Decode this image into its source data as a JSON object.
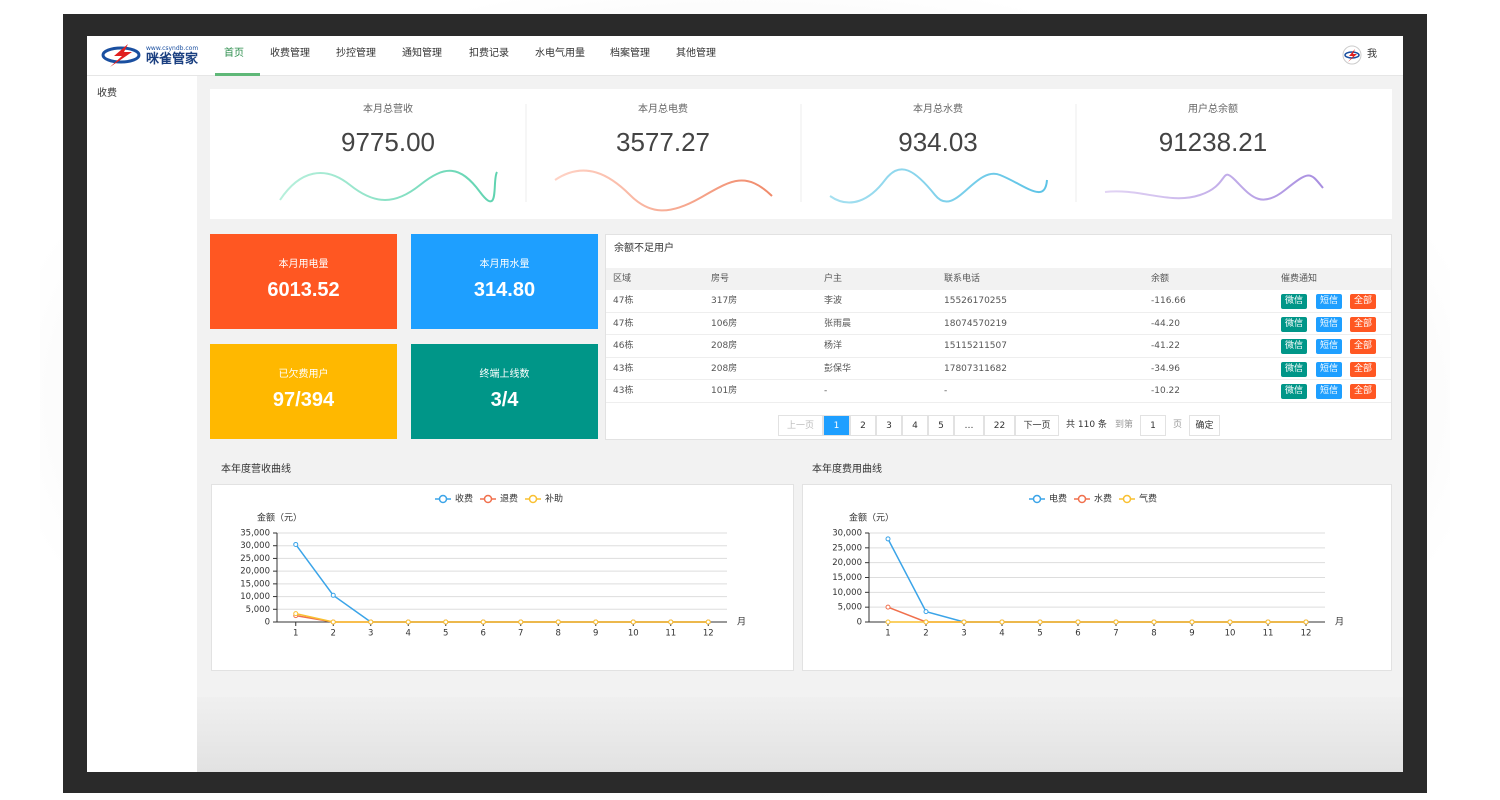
{
  "header": {
    "logo_url": "www.csyndb.com",
    "logo_name": "咪雀管家",
    "nav": [
      "首页",
      "收费管理",
      "抄控管理",
      "通知管理",
      "扣费记录",
      "水电气用量",
      "档案管理",
      "其他管理"
    ],
    "user": "我"
  },
  "sidebar": [
    "收费"
  ],
  "stats": [
    {
      "label": "本月总营收",
      "value": "9775.00"
    },
    {
      "label": "本月总电费",
      "value": "3577.27"
    },
    {
      "label": "本月总水费",
      "value": "934.03"
    },
    {
      "label": "用户总余额",
      "value": "91238.21"
    }
  ],
  "tiles": [
    {
      "label": "本月用电量",
      "value": "6013.52"
    },
    {
      "label": "本月用水量",
      "value": "314.80"
    },
    {
      "label": "已欠费用户",
      "value": "97/394"
    },
    {
      "label": "终端上线数",
      "value": "3/4"
    }
  ],
  "table": {
    "title": "余额不足用户",
    "columns": [
      "区域",
      "房号",
      "户主",
      "联系电话",
      "余额",
      "催费通知"
    ],
    "rows": [
      [
        "47栋",
        "317房",
        "李波",
        "15526170255",
        "-116.66"
      ],
      [
        "47栋",
        "106房",
        "张雨晨",
        "18074570219",
        "-44.20"
      ],
      [
        "46栋",
        "208房",
        "杨洋",
        "15115211507",
        "-41.22"
      ],
      [
        "43栋",
        "208房",
        "彭保华",
        "17807311682",
        "-34.96"
      ],
      [
        "43栋",
        "101房",
        "-",
        "-",
        "-10.22"
      ]
    ],
    "buttons": [
      "微信",
      "短信",
      "全部"
    ]
  },
  "pagination": {
    "prev": "上一页",
    "pages": [
      "1",
      "2",
      "3",
      "4",
      "5",
      "…",
      "22"
    ],
    "next": "下一页",
    "total": "共 110 条",
    "goto": "到第",
    "input": "1",
    "page_unit": "页",
    "confirm": "确定"
  },
  "chart_data": [
    {
      "type": "line",
      "title": "本年度营收曲线",
      "y_label": "金额（元）",
      "x_label": "月",
      "categories": [
        "1",
        "2",
        "3",
        "4",
        "5",
        "6",
        "7",
        "8",
        "9",
        "10",
        "11",
        "12"
      ],
      "series": [
        {
          "name": "收费",
          "color": "#3ba4e8",
          "values": [
            30500,
            10500,
            0,
            0,
            0,
            0,
            0,
            0,
            0,
            0,
            0,
            0
          ]
        },
        {
          "name": "退费",
          "color": "#f0704d",
          "values": [
            2500,
            0,
            0,
            0,
            0,
            0,
            0,
            0,
            0,
            0,
            0,
            0
          ]
        },
        {
          "name": "补助",
          "color": "#f9c031",
          "values": [
            3300,
            0,
            0,
            0,
            0,
            0,
            0,
            0,
            0,
            0,
            0,
            0
          ]
        }
      ],
      "ylim": [
        0,
        35000
      ],
      "yticks": [
        0,
        {
          "value": 5000,
          "label": "5,000"
        },
        {
          "value": 10000,
          "label": "10,000"
        },
        {
          "value": 15000,
          "label": "15,000"
        },
        {
          "value": 20000,
          "label": "20,000"
        },
        {
          "value": 25000,
          "label": "25,000"
        },
        {
          "value": 30000,
          "label": "30,000"
        },
        {
          "value": 35000,
          "label": "35,000"
        }
      ],
      "grid": true
    },
    {
      "type": "line",
      "title": "本年度费用曲线",
      "y_label": "金额（元）",
      "x_label": "月",
      "categories": [
        "1",
        "2",
        "3",
        "4",
        "5",
        "6",
        "7",
        "8",
        "9",
        "10",
        "11",
        "12"
      ],
      "series": [
        {
          "name": "电费",
          "color": "#3ba4e8",
          "values": [
            28000,
            3500,
            0,
            0,
            0,
            0,
            0,
            0,
            0,
            0,
            0,
            0
          ]
        },
        {
          "name": "水费",
          "color": "#f0704d",
          "values": [
            5000,
            0,
            0,
            0,
            0,
            0,
            0,
            0,
            0,
            0,
            0,
            0
          ]
        },
        {
          "name": "气费",
          "color": "#f9c031",
          "values": [
            0,
            0,
            0,
            0,
            0,
            0,
            0,
            0,
            0,
            0,
            0,
            0
          ]
        }
      ],
      "ylim": [
        0,
        30000
      ],
      "yticks": [
        0,
        {
          "value": 5000,
          "label": "5,000"
        },
        {
          "value": 10000,
          "label": "10,000"
        },
        {
          "value": 15000,
          "label": "15,000"
        },
        {
          "value": 20000,
          "label": "20,000"
        },
        {
          "value": 25000,
          "label": "25,000"
        },
        {
          "value": 30000,
          "label": "30,000"
        }
      ],
      "grid": true
    }
  ]
}
